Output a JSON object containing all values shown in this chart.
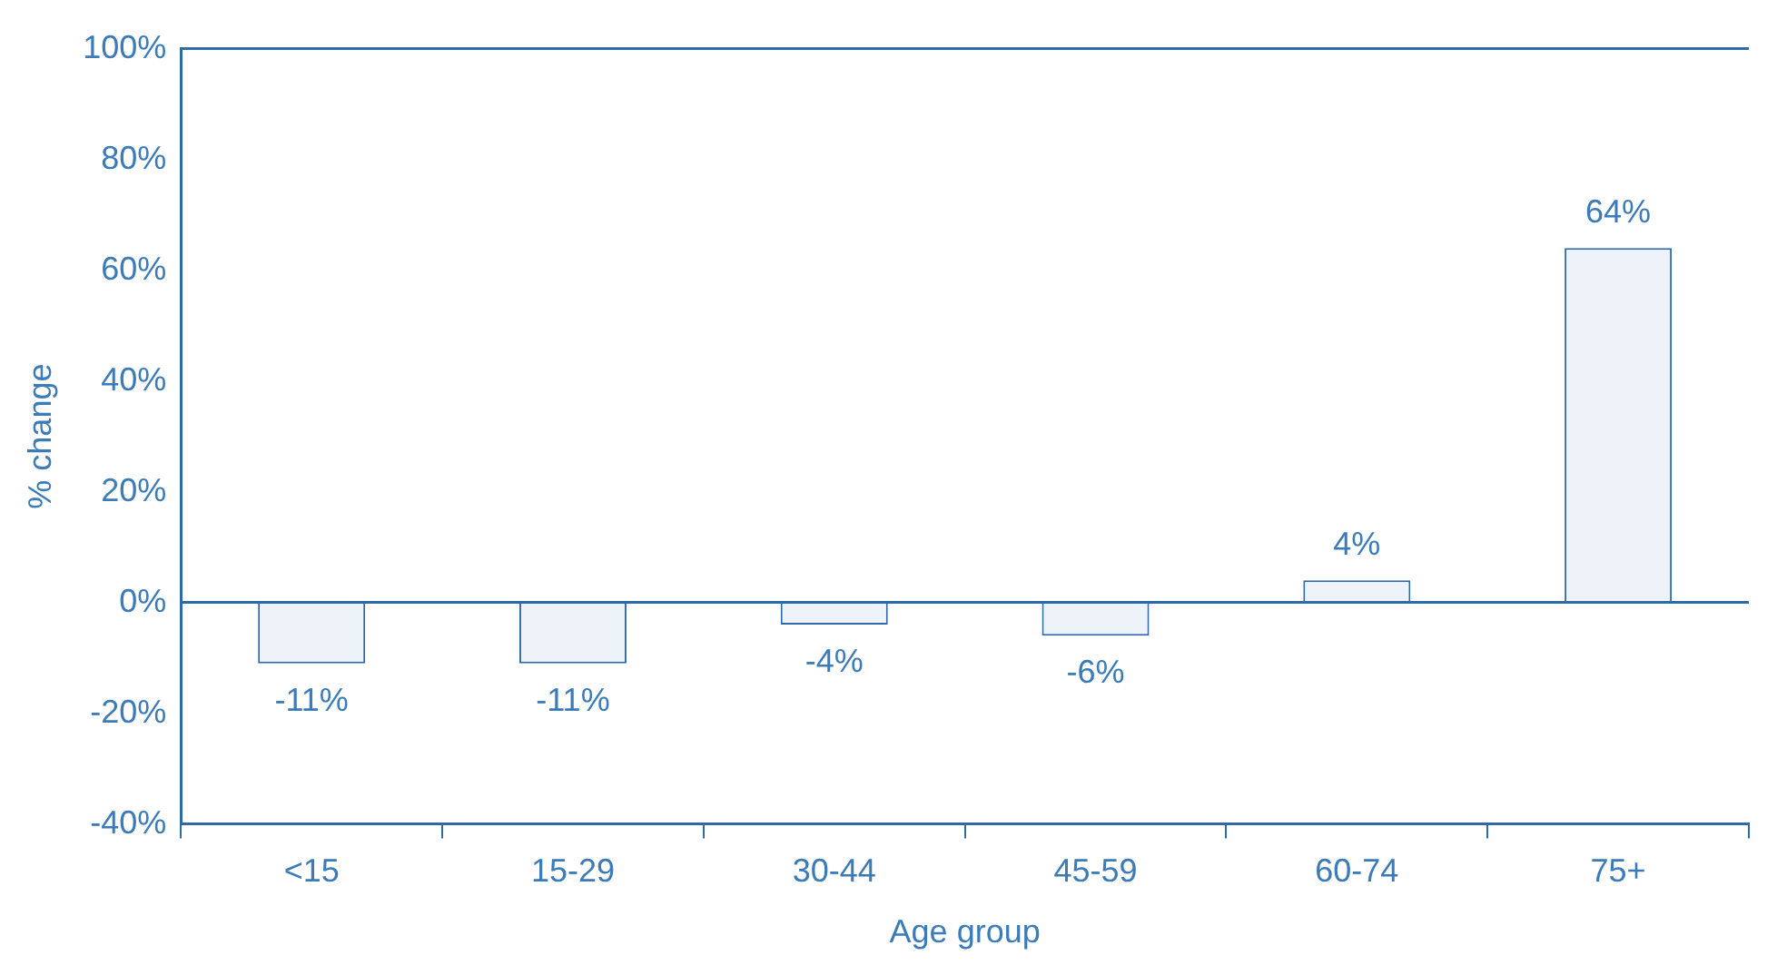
{
  "chart_data": {
    "type": "bar",
    "xlabel": "Age group",
    "ylabel": "% change",
    "categories": [
      "<15",
      "15-29",
      "30-44",
      "45-59",
      "60-74",
      "75+"
    ],
    "values": [
      -11,
      -11,
      -4,
      -6,
      4,
      64
    ],
    "color": "#eef3fa",
    "ylim": [
      -40,
      100
    ],
    "yticks": [
      {
        "value": -40,
        "label": "-40%"
      },
      {
        "value": -20,
        "label": "-20%"
      },
      {
        "value": 0,
        "label": "0%"
      },
      {
        "value": 20,
        "label": "20%"
      },
      {
        "value": 40,
        "label": "40%"
      },
      {
        "value": 60,
        "label": "60%"
      },
      {
        "value": 80,
        "label": "80%"
      },
      {
        "value": 100,
        "label": "100%"
      }
    ],
    "value_labels": [
      "-11%",
      "-11%",
      "-4%",
      "-6%",
      "4%",
      "64%"
    ],
    "ref_lines": [
      {
        "axis": "y",
        "value": 0,
        "color": "#2f6aa6"
      }
    ],
    "legend": false
  }
}
